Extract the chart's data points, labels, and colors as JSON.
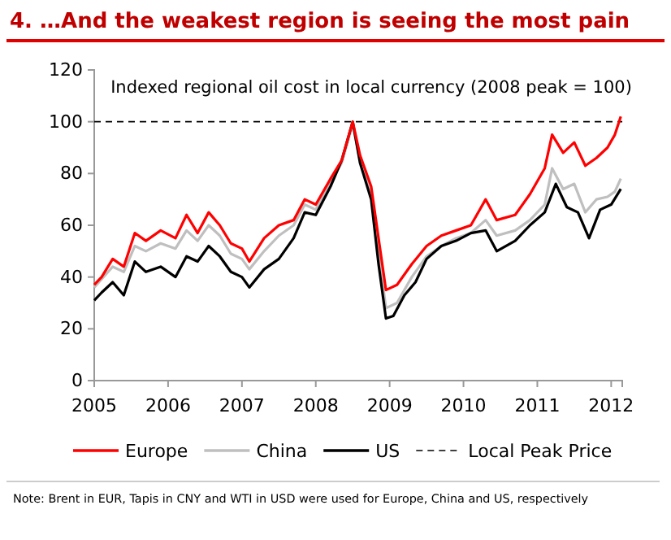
{
  "chart_data": {
    "type": "line",
    "title": "4. …And the weakest region is seeing the most pain",
    "annotations": [
      "Indexed regional oil cost in local currency (2008 peak = 100)",
      "Note: Brent in EUR, Tapis in CNY and WTI in USD were used for Europe, China and US, respectively"
    ],
    "xlim": [
      2005,
      2012.15
    ],
    "xticks": [
      2005,
      2006,
      2007,
      2008,
      2009,
      2010,
      2011,
      2012
    ],
    "ylim": [
      0,
      120
    ],
    "yticks": [
      0,
      20,
      40,
      60,
      80,
      100,
      120
    ],
    "legend": "bottom",
    "grid": false,
    "line_style": "solid",
    "ref_lines": [
      {
        "axis": "y",
        "value": 100,
        "label": "Local Peak Price",
        "color": "#000000",
        "line_style": "dashed"
      }
    ],
    "series": [
      {
        "name": "Europe",
        "color": "#ff0000",
        "x": [
          2005.0,
          2005.1,
          2005.25,
          2005.4,
          2005.55,
          2005.7,
          2005.9,
          2006.1,
          2006.25,
          2006.4,
          2006.55,
          2006.7,
          2006.85,
          2007.0,
          2007.1,
          2007.3,
          2007.5,
          2007.7,
          2007.85,
          2008.0,
          2008.2,
          2008.35,
          2008.5,
          2008.6,
          2008.75,
          2008.85,
          2008.95,
          2009.1,
          2009.3,
          2009.5,
          2009.7,
          2009.9,
          2010.1,
          2010.3,
          2010.45,
          2010.7,
          2010.9,
          2011.1,
          2011.2,
          2011.35,
          2011.5,
          2011.65,
          2011.8,
          2011.95,
          2012.05,
          2012.13
        ],
        "values": [
          37,
          40,
          47,
          44,
          57,
          54,
          58,
          55,
          64,
          57,
          65,
          60,
          53,
          51,
          46,
          55,
          60,
          62,
          70,
          68,
          78,
          85,
          100,
          87,
          75,
          55,
          35,
          37,
          45,
          52,
          56,
          58,
          60,
          70,
          62,
          64,
          72,
          82,
          95,
          88,
          92,
          83,
          86,
          90,
          95,
          102
        ]
      },
      {
        "name": "China",
        "color": "#bfbfbf",
        "x": [
          2005.0,
          2005.25,
          2005.4,
          2005.55,
          2005.7,
          2005.9,
          2006.1,
          2006.25,
          2006.4,
          2006.55,
          2006.7,
          2006.85,
          2007.0,
          2007.1,
          2007.3,
          2007.5,
          2007.7,
          2007.85,
          2008.0,
          2008.2,
          2008.35,
          2008.5,
          2008.6,
          2008.75,
          2008.85,
          2008.95,
          2009.1,
          2009.3,
          2009.5,
          2009.7,
          2009.9,
          2010.1,
          2010.3,
          2010.45,
          2010.7,
          2010.9,
          2011.1,
          2011.2,
          2011.35,
          2011.5,
          2011.65,
          2011.8,
          2011.95,
          2012.05,
          2012.13
        ],
        "values": [
          36,
          44,
          42,
          52,
          50,
          53,
          51,
          58,
          54,
          60,
          56,
          49,
          47,
          43,
          50,
          56,
          60,
          68,
          66,
          77,
          84,
          99,
          85,
          72,
          50,
          28,
          30,
          40,
          48,
          52,
          55,
          57,
          62,
          56,
          58,
          62,
          68,
          82,
          74,
          76,
          65,
          70,
          71,
          73,
          78
        ]
      },
      {
        "name": "US",
        "color": "#000000",
        "x": [
          2005.0,
          2005.1,
          2005.25,
          2005.4,
          2005.55,
          2005.7,
          2005.9,
          2006.1,
          2006.25,
          2006.4,
          2006.55,
          2006.7,
          2006.85,
          2007.0,
          2007.1,
          2007.3,
          2007.5,
          2007.7,
          2007.85,
          2008.0,
          2008.2,
          2008.35,
          2008.5,
          2008.6,
          2008.75,
          2008.85,
          2008.95,
          2009.05,
          2009.2,
          2009.35,
          2009.5,
          2009.7,
          2009.9,
          2010.1,
          2010.3,
          2010.45,
          2010.7,
          2010.9,
          2011.1,
          2011.25,
          2011.4,
          2011.55,
          2011.7,
          2011.85,
          2012.0,
          2012.13
        ],
        "values": [
          31,
          34,
          38,
          33,
          46,
          42,
          44,
          40,
          48,
          46,
          52,
          48,
          42,
          40,
          36,
          43,
          47,
          55,
          65,
          64,
          75,
          85,
          100,
          84,
          70,
          45,
          24,
          25,
          33,
          38,
          47,
          52,
          54,
          57,
          58,
          50,
          54,
          60,
          65,
          76,
          67,
          65,
          55,
          66,
          68,
          74
        ]
      }
    ]
  }
}
